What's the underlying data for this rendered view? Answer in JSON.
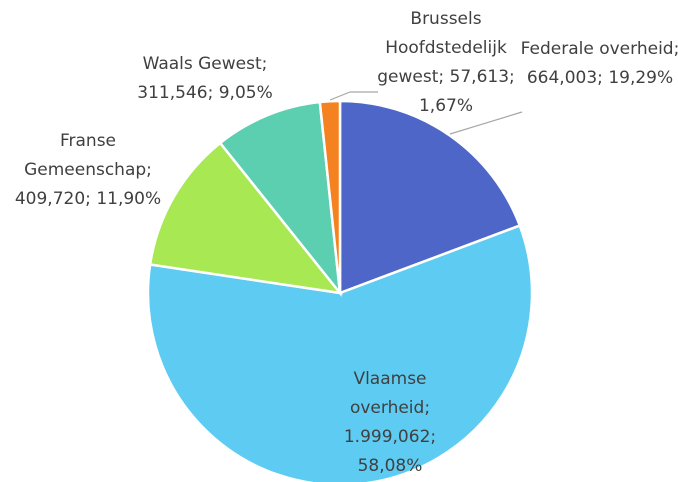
{
  "chart_data": {
    "type": "pie",
    "categories": [
      "Federale overheid",
      "Vlaamse overheid",
      "Franse Gemeenschap",
      "Waals Gewest",
      "Brussels Hoofdstedelijk gewest"
    ],
    "values": [
      664.003,
      1999.062,
      409.72,
      311.546,
      57.613
    ],
    "value_labels": [
      "664,003",
      "1.999,062",
      "409,720",
      "311,546",
      "57,613"
    ],
    "percents": [
      19.29,
      58.08,
      11.9,
      9.05,
      1.67
    ],
    "percent_labels": [
      "19,29%",
      "58,08%",
      "11,90%",
      "9,05%",
      "1,67%"
    ],
    "label_separator": "; ",
    "colors": [
      "#4f66c9",
      "#5ecbf2",
      "#a8e853",
      "#5ccfb0",
      "#f58220"
    ]
  }
}
